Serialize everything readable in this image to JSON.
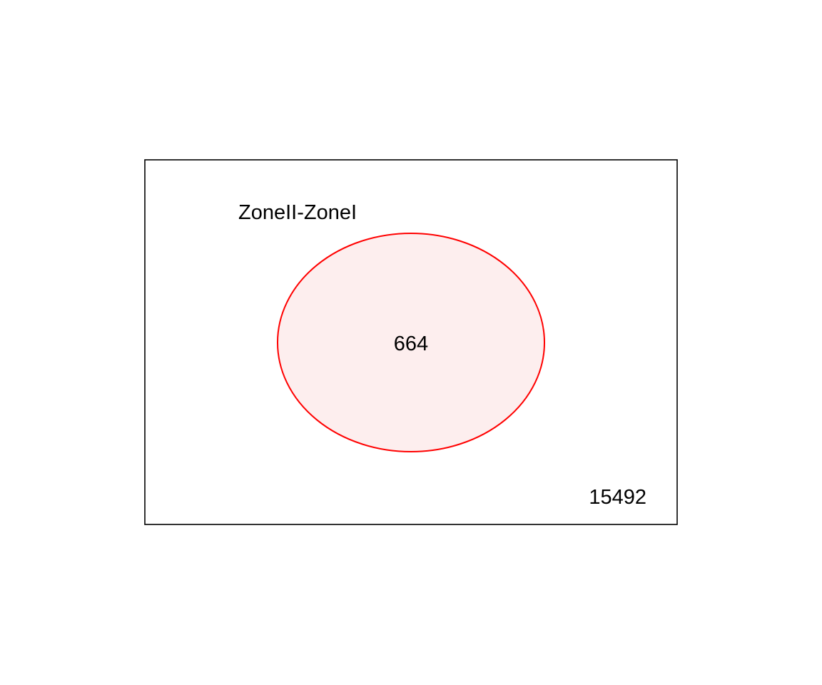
{
  "diagram": {
    "type": "venn",
    "set_label": "ZoneII-ZoneI",
    "set_count": "664",
    "outside_count": "15492",
    "colors": {
      "set_stroke": "#ff0000",
      "set_fill": "#fdeeee",
      "universe_stroke": "#000000"
    }
  }
}
